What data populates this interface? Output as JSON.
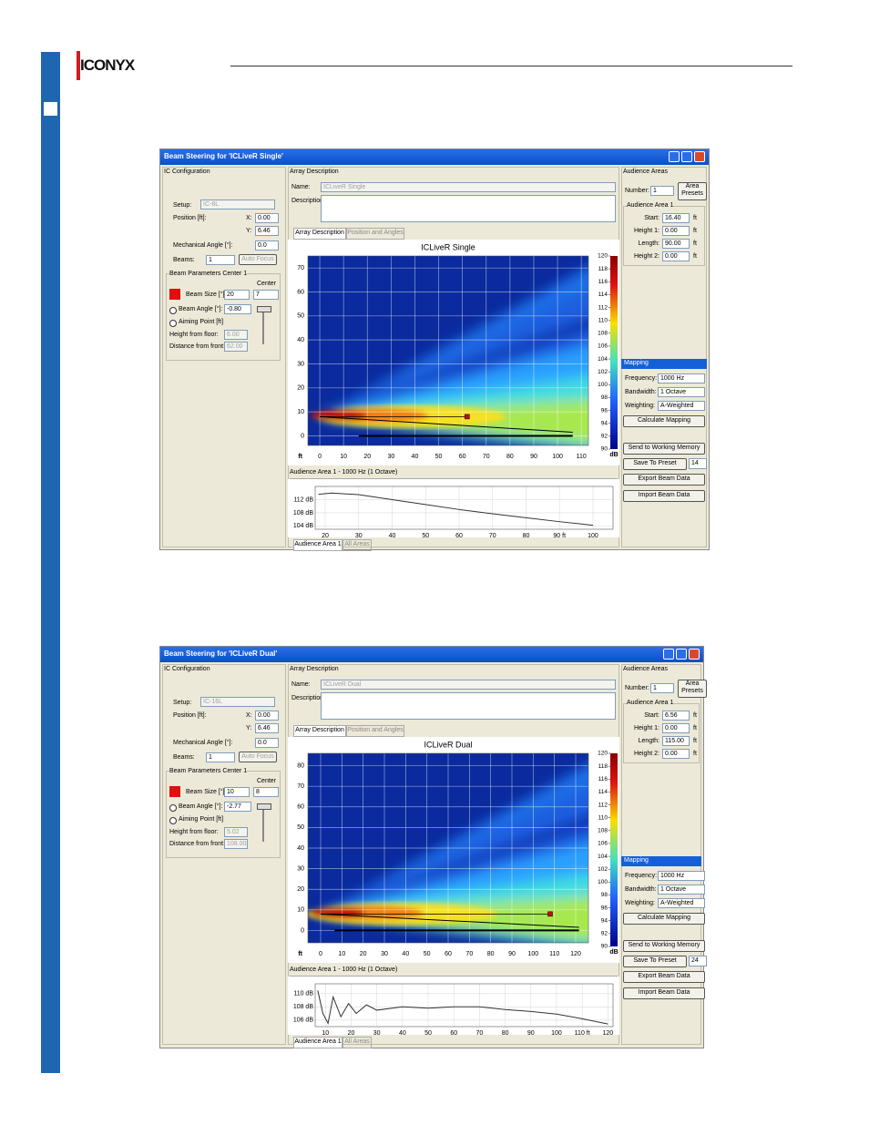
{
  "header": {
    "logo": "ICONYX"
  },
  "windows": [
    {
      "title": "Beam Steering for 'ICLiveR Single'",
      "ic": {
        "heading": "IC Configuration",
        "setup_label": "Setup:",
        "setup_value": "IC-8L",
        "position_label": "Position [ft]:",
        "x_label": "X:",
        "x_value": "0.00",
        "y_label": "Y:",
        "y_value": "6.46",
        "mech_label": "Mechanical Angle [°]:",
        "mech_value": "0.0",
        "beams_label": "Beams:",
        "beams_value": "1",
        "auto_focus": "Auto Focus",
        "beam_params": "Beam Parameters Center 1",
        "center_label": "Center",
        "beam_size_label": "Beam Size [°]:",
        "beam_size_value": "20",
        "center_value": "7",
        "beam_angle_label": "Beam Angle [°]:",
        "beam_angle_value": "-0.80",
        "aiming_label": "Aiming Point [ft]",
        "height_label": "Height from floor:",
        "height_value": "6.00",
        "distance_label": "Distance from front:",
        "distance_value": "62.00"
      },
      "array": {
        "heading": "Array Description",
        "name_label": "Name:",
        "name_value": "ICLiveR Single",
        "desc_label": "Description:",
        "tabs": [
          "Array Description",
          "Position and Angles"
        ]
      },
      "map": {
        "title": "ICLiveR Single",
        "x_unit": "ft",
        "xlim": [
          -5,
          113
        ],
        "ylim": [
          -4,
          75
        ],
        "xticks": [
          0,
          10,
          20,
          30,
          40,
          50,
          60,
          70,
          80,
          90,
          100,
          110
        ],
        "yticks": [
          0,
          10,
          20,
          30,
          40,
          50,
          60,
          70
        ],
        "colorbar": {
          "unit": "dB",
          "lim": [
            90,
            120
          ],
          "ticks": [
            90,
            92,
            94,
            96,
            98,
            100,
            102,
            104,
            106,
            108,
            110,
            112,
            114,
            116,
            118,
            120
          ]
        }
      },
      "response": {
        "title": "Audience Area 1 - 1000 Hz (1 Octave)",
        "xlim": [
          17,
          106
        ],
        "ylim": [
          103,
          116
        ],
        "xticks": [
          20,
          30,
          40,
          50,
          60,
          70,
          80,
          {
            "value": 90,
            "label": "90 ft"
          },
          100
        ],
        "yticks": [
          {
            "value": 112,
            "label": "112 dB"
          },
          {
            "value": 108,
            "label": "108 dB"
          },
          {
            "value": 104,
            "label": "104 dB"
          }
        ],
        "x": [
          18,
          22,
          30,
          40,
          50,
          60,
          70,
          80,
          90,
          100
        ],
        "values": [
          113.6,
          114,
          113.5,
          112,
          110.5,
          109,
          107.7,
          106.5,
          105.3,
          104.2
        ],
        "tabs": [
          "Audience Area 1",
          "All Areas"
        ]
      },
      "areas": {
        "heading": "Audience Areas",
        "number_label": "Number:",
        "number_value": "1",
        "presets": "Area Presets",
        "group": "Audience Area 1",
        "rows": [
          {
            "label": "Start:",
            "value": "16.40",
            "unit": "ft"
          },
          {
            "label": "Height 1:",
            "value": "0.00",
            "unit": "ft"
          },
          {
            "label": "Length:",
            "value": "90.00",
            "unit": "ft"
          },
          {
            "label": "Height 2:",
            "value": "0.00",
            "unit": "ft"
          }
        ]
      },
      "mapping": {
        "heading": "Mapping",
        "rows": [
          {
            "label": "Frequency:",
            "value": "1000 Hz"
          },
          {
            "label": "Bandwidth:",
            "value": "1 Octave"
          },
          {
            "label": "Weighting:",
            "value": "A-Weighted"
          }
        ],
        "calculate": "Calculate Mapping"
      },
      "actions": {
        "send": "Send to Working Memory",
        "save": "Save To Preset",
        "save_value": "14",
        "export": "Export Beam Data",
        "import": "Import Beam Data"
      }
    },
    {
      "title": "Beam Steering for 'ICLiveR Dual'",
      "ic": {
        "heading": "IC Configuration",
        "setup_label": "Setup:",
        "setup_value": "IC-16L",
        "position_label": "Position [ft]:",
        "x_label": "X:",
        "x_value": "0.00",
        "y_label": "Y:",
        "y_value": "6.46",
        "mech_label": "Mechanical Angle [°]:",
        "mech_value": "0.0",
        "beams_label": "Beams:",
        "beams_value": "1",
        "auto_focus": "Auto Focus",
        "beam_params": "Beam Parameters Center 1",
        "center_label": "Center",
        "beam_size_label": "Beam Size [°]:",
        "beam_size_value": "10",
        "center_value": "8",
        "beam_angle_label": "Beam Angle [°]:",
        "beam_angle_value": "-2.77",
        "aiming_label": "Aiming Point [ft]",
        "height_label": "Height from floor:",
        "height_value": "5.02",
        "distance_label": "Distance from front:",
        "distance_value": "108.00"
      },
      "array": {
        "heading": "Array Description",
        "name_label": "Name:",
        "name_value": "ICLiveR Dual",
        "desc_label": "Description:",
        "tabs": [
          "Array Description",
          "Position and Angles"
        ]
      },
      "map": {
        "title": "ICLiveR Dual",
        "x_unit": "ft",
        "xlim": [
          -6,
          126
        ],
        "ylim": [
          -6,
          86
        ],
        "xticks": [
          0,
          10,
          20,
          30,
          40,
          50,
          60,
          70,
          80,
          90,
          100,
          110,
          120
        ],
        "yticks": [
          0,
          10,
          20,
          30,
          40,
          50,
          60,
          70,
          80
        ],
        "colorbar": {
          "unit": "dB",
          "lim": [
            90,
            120
          ],
          "ticks": [
            90,
            92,
            94,
            96,
            98,
            100,
            102,
            104,
            106,
            108,
            110,
            112,
            114,
            116,
            118,
            120
          ]
        }
      },
      "response": {
        "title": "Audience Area 1 - 1000 Hz (1 Octave)",
        "xlim": [
          6,
          122
        ],
        "ylim": [
          105,
          111.5
        ],
        "xticks": [
          10,
          20,
          30,
          40,
          50,
          60,
          70,
          80,
          90,
          100,
          {
            "value": 110,
            "label": "110 ft"
          },
          120
        ],
        "yticks": [
          {
            "value": 110,
            "label": "110 dB"
          },
          {
            "value": 108,
            "label": "108 dB"
          },
          {
            "value": 106,
            "label": "106 dB"
          }
        ],
        "x": [
          7,
          9,
          11,
          13,
          16,
          19,
          22,
          26,
          30,
          40,
          50,
          60,
          70,
          80,
          90,
          100,
          110,
          120
        ],
        "values": [
          110.5,
          107,
          105.5,
          109.5,
          106.5,
          108.5,
          107,
          108.3,
          107.5,
          108,
          107.8,
          108,
          108,
          107.6,
          107.3,
          106.9,
          106.2,
          105.4
        ],
        "tabs": [
          "Audience Area 1",
          "All Areas"
        ]
      },
      "areas": {
        "heading": "Audience Areas",
        "number_label": "Number:",
        "number_value": "1",
        "presets": "Area Presets",
        "group": "Audience Area 1",
        "rows": [
          {
            "label": "Start:",
            "value": "6.56",
            "unit": "ft"
          },
          {
            "label": "Height 1:",
            "value": "0.00",
            "unit": "ft"
          },
          {
            "label": "Length:",
            "value": "115.00",
            "unit": "ft"
          },
          {
            "label": "Height 2:",
            "value": "0.00",
            "unit": "ft"
          }
        ]
      },
      "mapping": {
        "heading": "Mapping",
        "rows": [
          {
            "label": "Frequency:",
            "value": "1000 Hz"
          },
          {
            "label": "Bandwidth:",
            "value": "1 Octave"
          },
          {
            "label": "Weighting:",
            "value": "A-Weighted"
          }
        ],
        "calculate": "Calculate Mapping"
      },
      "actions": {
        "send": "Send to Working Memory",
        "save": "Save To Preset",
        "save_value": "24",
        "export": "Export Beam Data",
        "import": "Import Beam Data"
      }
    }
  ]
}
